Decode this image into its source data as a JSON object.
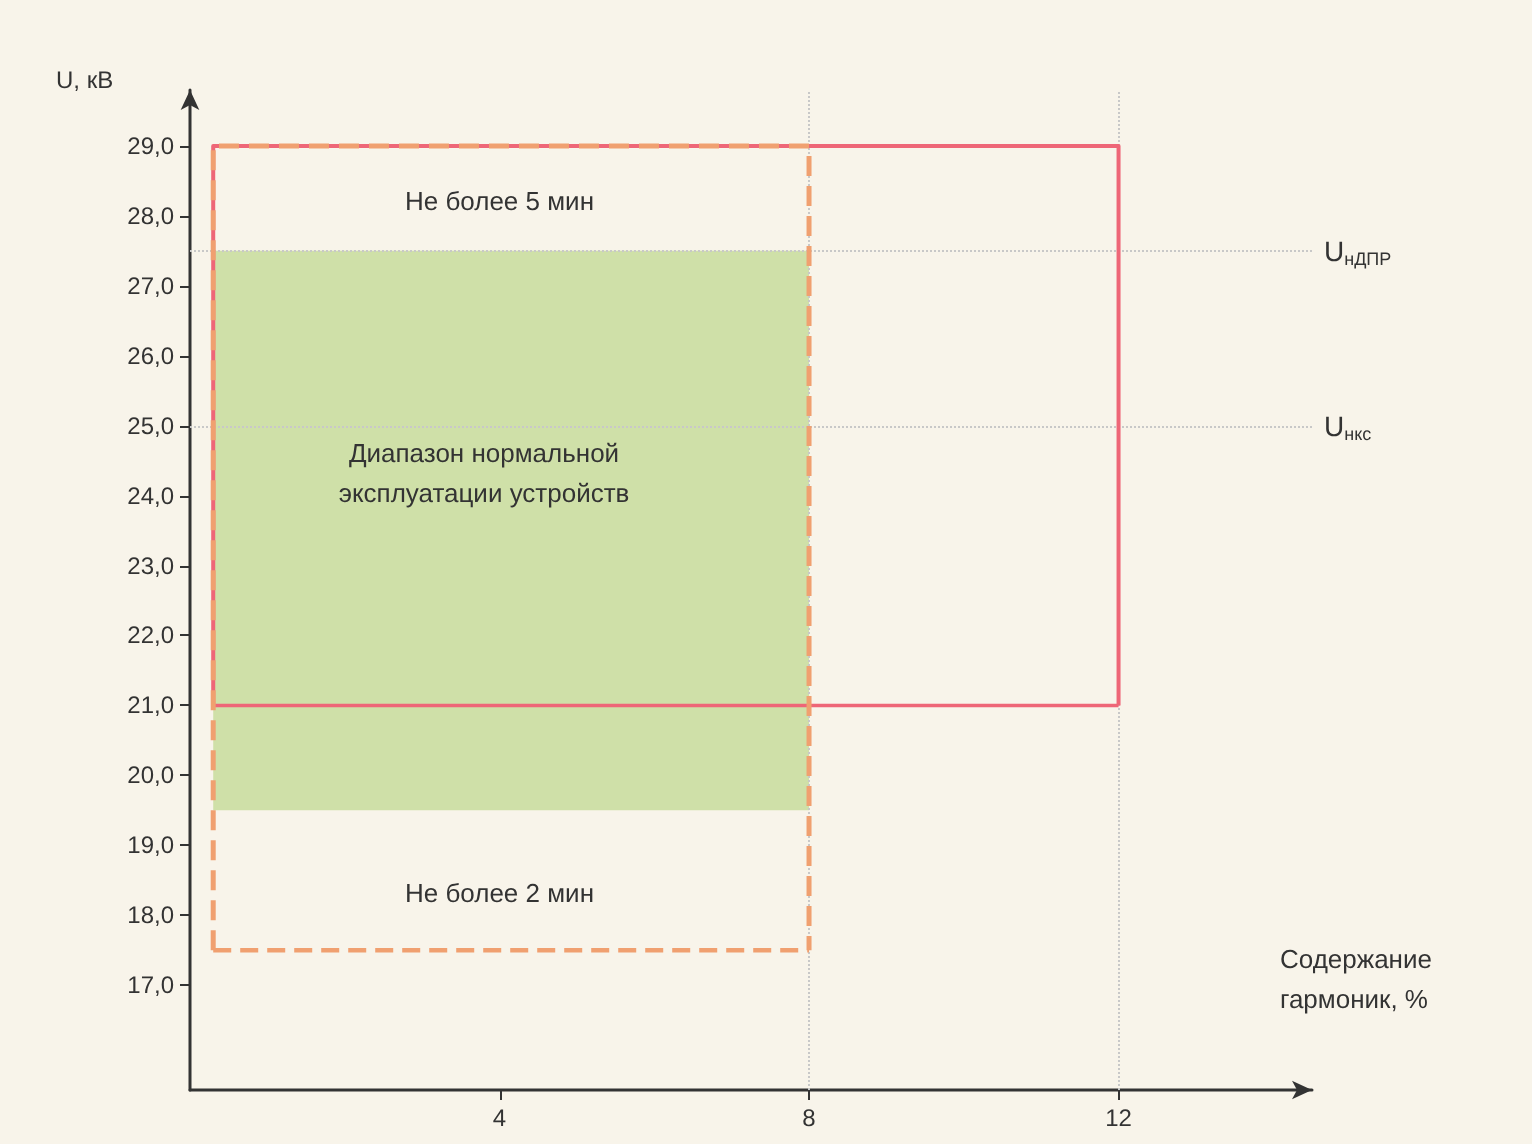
{
  "chart_data": {
    "type": "line",
    "xlabel": "Содержание гармоник, %",
    "ylabel": "U, кВ",
    "xlim": [
      0,
      14.5
    ],
    "xticks": [
      4,
      8,
      12
    ],
    "ylim": [
      15.5,
      29.8
    ],
    "yticks": [
      {
        "value": 17,
        "label": "17,0"
      },
      {
        "value": 18,
        "label": "18,0"
      },
      {
        "value": 19,
        "label": "19,0"
      },
      {
        "value": 20,
        "label": "20,0"
      },
      {
        "value": 21,
        "label": "21,0"
      },
      {
        "value": 22,
        "label": "22,0"
      },
      {
        "value": 23,
        "label": "23,0"
      },
      {
        "value": 24,
        "label": "24,0"
      },
      {
        "value": 25,
        "label": "25,0"
      },
      {
        "value": 26,
        "label": "26,0"
      },
      {
        "value": 27,
        "label": "27,0"
      },
      {
        "value": 28,
        "label": "28,0"
      },
      {
        "value": 29,
        "label": "29,0"
      }
    ],
    "series": [
      {
        "type": "area",
        "color": "#cfe0a8",
        "x": [
          0.3,
          0.3,
          8,
          8,
          0.3
        ],
        "values": [
          19.5,
          27.5,
          27.5,
          19.5,
          19.5
        ]
      },
      {
        "type": "line",
        "color": "#f0a070",
        "line_style": "dashed",
        "x": [
          0.3,
          0.3,
          8,
          8
        ],
        "values": [
          17.5,
          29,
          29,
          17.5
        ]
      },
      {
        "color": "#f0a070",
        "line_style": "dashed",
        "x": [
          0.3,
          8
        ],
        "values": [
          17.5,
          17.5
        ]
      },
      {
        "type": "line",
        "color": "#ee6677",
        "line_style": "solid",
        "x": [
          0.3,
          0.3,
          12,
          12
        ],
        "values": [
          21,
          29,
          29,
          21
        ]
      },
      {
        "color": "#ee6677",
        "line_style": "solid",
        "x": [
          0.3,
          12
        ],
        "values": [
          21,
          21
        ]
      }
    ],
    "ref_lines": [
      {
        "axis": "y",
        "value": 27.5,
        "label": "U$_{нДПР}$",
        "color": "#c8c8c8",
        "line_style": "dotted"
      },
      {
        "axis": "y",
        "value": 25,
        "label": "U$_{нкс}$",
        "color": "#c8c8c8",
        "line_style": "dotted"
      },
      {
        "axis": "x",
        "value": 8,
        "color": "#c8c8c8",
        "line_style": "dotted"
      },
      {
        "axis": "x",
        "value": 12,
        "color": "#c8c8c8",
        "line_style": "dotted"
      }
    ],
    "annotations": [
      "Не более 5 мин",
      "Диапазон нормальной эксплуатации устройств",
      "Не более 2 мин"
    ],
    "grid": false,
    "marker": "none"
  }
}
